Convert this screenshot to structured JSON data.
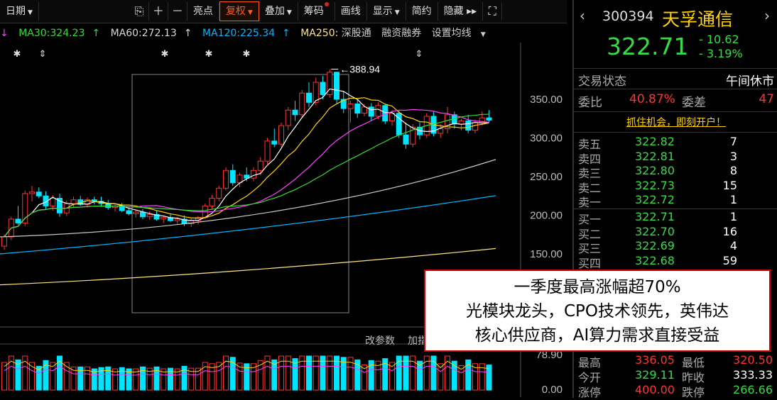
{
  "toolbar": {
    "period_label": "日期",
    "buttons": [
      "亮点",
      "复权",
      "叠加",
      "筹码",
      "画线",
      "显示",
      "简约",
      "隐藏"
    ],
    "selected": "复权"
  },
  "ma_bar": {
    "ma30": "MA30:324.23",
    "ma60": "MA60:272.13",
    "ma120": "MA120:225.34",
    "ma250": "MA250:",
    "extra": [
      "深股通",
      "融资融券",
      "设置均线"
    ]
  },
  "chart": {
    "price_labels": [
      "350.00",
      "300.00",
      "250.00",
      "200.00",
      "150.00"
    ],
    "high_label": "388.94",
    "volume_labels": [
      "78.90",
      "0.00"
    ],
    "bottom_tabs": [
      "改参数",
      "加指标"
    ]
  },
  "colors": {
    "up": "#ff3232",
    "down": "#00e5ff",
    "ma5": "#ffffff",
    "ma10": "#ffd200",
    "ma20": "#ff40ff",
    "ma30": "#33dd33",
    "ma60": "#c8c8c8",
    "ma120": "#00b4ff",
    "ma250": "#ffe680"
  },
  "chart_data": {
    "type": "candlestick",
    "x_count": 71,
    "price_range": [
      100,
      400
    ],
    "candles": [
      [
        160,
        175,
        155,
        172
      ],
      [
        172,
        198,
        168,
        195
      ],
      [
        195,
        212,
        188,
        190
      ],
      [
        190,
        232,
        186,
        228
      ],
      [
        228,
        238,
        218,
        230
      ],
      [
        230,
        236,
        222,
        225
      ],
      [
        225,
        231,
        208,
        212
      ],
      [
        212,
        226,
        206,
        222
      ],
      [
        222,
        228,
        198,
        203
      ],
      [
        203,
        219,
        199,
        215
      ],
      [
        215,
        224,
        211,
        220
      ],
      [
        220,
        225,
        212,
        214
      ],
      [
        214,
        223,
        210,
        220
      ],
      [
        220,
        224,
        214,
        218
      ],
      [
        218,
        224,
        212,
        215
      ],
      [
        215,
        220,
        207,
        210
      ],
      [
        210,
        215,
        205,
        212
      ],
      [
        212,
        216,
        204,
        206
      ],
      [
        206,
        210,
        200,
        202
      ],
      [
        202,
        207,
        197,
        204
      ],
      [
        204,
        208,
        195,
        198
      ],
      [
        198,
        205,
        194,
        201
      ],
      [
        201,
        206,
        193,
        195
      ],
      [
        195,
        200,
        190,
        197
      ],
      [
        197,
        202,
        191,
        193
      ],
      [
        193,
        198,
        188,
        195
      ],
      [
        195,
        200,
        186,
        189
      ],
      [
        189,
        196,
        185,
        193
      ],
      [
        193,
        199,
        188,
        197
      ],
      [
        197,
        215,
        195,
        212
      ],
      [
        212,
        226,
        208,
        222
      ],
      [
        222,
        238,
        218,
        235
      ],
      [
        235,
        262,
        232,
        258
      ],
      [
        258,
        266,
        238,
        242
      ],
      [
        242,
        255,
        236,
        252
      ],
      [
        252,
        262,
        244,
        248
      ],
      [
        248,
        262,
        244,
        258
      ],
      [
        258,
        275,
        252,
        270
      ],
      [
        270,
        300,
        266,
        296
      ],
      [
        296,
        312,
        288,
        292
      ],
      [
        292,
        320,
        288,
        316
      ],
      [
        316,
        340,
        310,
        336
      ],
      [
        336,
        348,
        322,
        330
      ],
      [
        330,
        362,
        326,
        358
      ],
      [
        358,
        372,
        340,
        346
      ],
      [
        346,
        378,
        342,
        372
      ],
      [
        372,
        380,
        350,
        356
      ],
      [
        356,
        389,
        352,
        385
      ],
      [
        385,
        386,
        345,
        350
      ],
      [
        350,
        360,
        332,
        338
      ],
      [
        338,
        348,
        320,
        344
      ],
      [
        344,
        350,
        326,
        332
      ],
      [
        332,
        344,
        328,
        340
      ],
      [
        340,
        345,
        322,
        328
      ],
      [
        328,
        346,
        324,
        342
      ],
      [
        342,
        344,
        318,
        322
      ],
      [
        322,
        336,
        316,
        332
      ],
      [
        332,
        335,
        300,
        304
      ],
      [
        304,
        320,
        286,
        292
      ],
      [
        292,
        318,
        288,
        314
      ],
      [
        314,
        320,
        298,
        304
      ],
      [
        304,
        332,
        300,
        328
      ],
      [
        328,
        334,
        302,
        306
      ],
      [
        306,
        318,
        300,
        312
      ],
      [
        312,
        340,
        306,
        330
      ],
      [
        330,
        334,
        312,
        318
      ],
      [
        318,
        325,
        310,
        322
      ],
      [
        322,
        330,
        306,
        310
      ],
      [
        310,
        324,
        306,
        320
      ],
      [
        320,
        334,
        316,
        326
      ],
      [
        326,
        336,
        320,
        323
      ]
    ],
    "ma30": 324.23,
    "ma60": 272.13,
    "ma120": 225.34
  },
  "stock": {
    "code": "300394",
    "name": "天孚通信",
    "price": "322.71",
    "change": "- 10.62",
    "change_pct": "- 3.19%",
    "status_label": "交易状态",
    "status_value": "午间休市",
    "weibi_label": "委比",
    "weibi_value": "40.87%",
    "weicha_label": "委差",
    "weicha_value": "47",
    "promo": "抓住机会，即刻开户！",
    "sell": [
      {
        "label": "卖五",
        "price": "322.82",
        "vol": "7"
      },
      {
        "label": "卖四",
        "price": "322.81",
        "vol": "3"
      },
      {
        "label": "卖三",
        "price": "322.80",
        "vol": "8"
      },
      {
        "label": "卖二",
        "price": "322.73",
        "vol": "15"
      },
      {
        "label": "卖一",
        "price": "322.72",
        "vol": "1"
      }
    ],
    "buy": [
      {
        "label": "买一",
        "price": "322.71",
        "vol": "1"
      },
      {
        "label": "买二",
        "price": "322.70",
        "vol": "16"
      },
      {
        "label": "买三",
        "price": "322.69",
        "vol": "4"
      },
      {
        "label": "买四",
        "price": "322.68",
        "vol": "59"
      }
    ],
    "stats": [
      {
        "l1": "最高",
        "v1": "336.05",
        "l2": "最低",
        "v2": "320.50"
      },
      {
        "l1": "今开",
        "v1": "329.11",
        "l2": "昨收",
        "v2": "333.33"
      },
      {
        "l1": "涨停",
        "v1": "400.00",
        "l2": "跌停",
        "v2": "266.66"
      }
    ]
  },
  "overlay": {
    "line1": "一季度最高涨幅超70%",
    "line2": "光模块龙头，CPO技术领先，英伟达",
    "line3": "核心供应商，AI算力需求直接受益"
  }
}
